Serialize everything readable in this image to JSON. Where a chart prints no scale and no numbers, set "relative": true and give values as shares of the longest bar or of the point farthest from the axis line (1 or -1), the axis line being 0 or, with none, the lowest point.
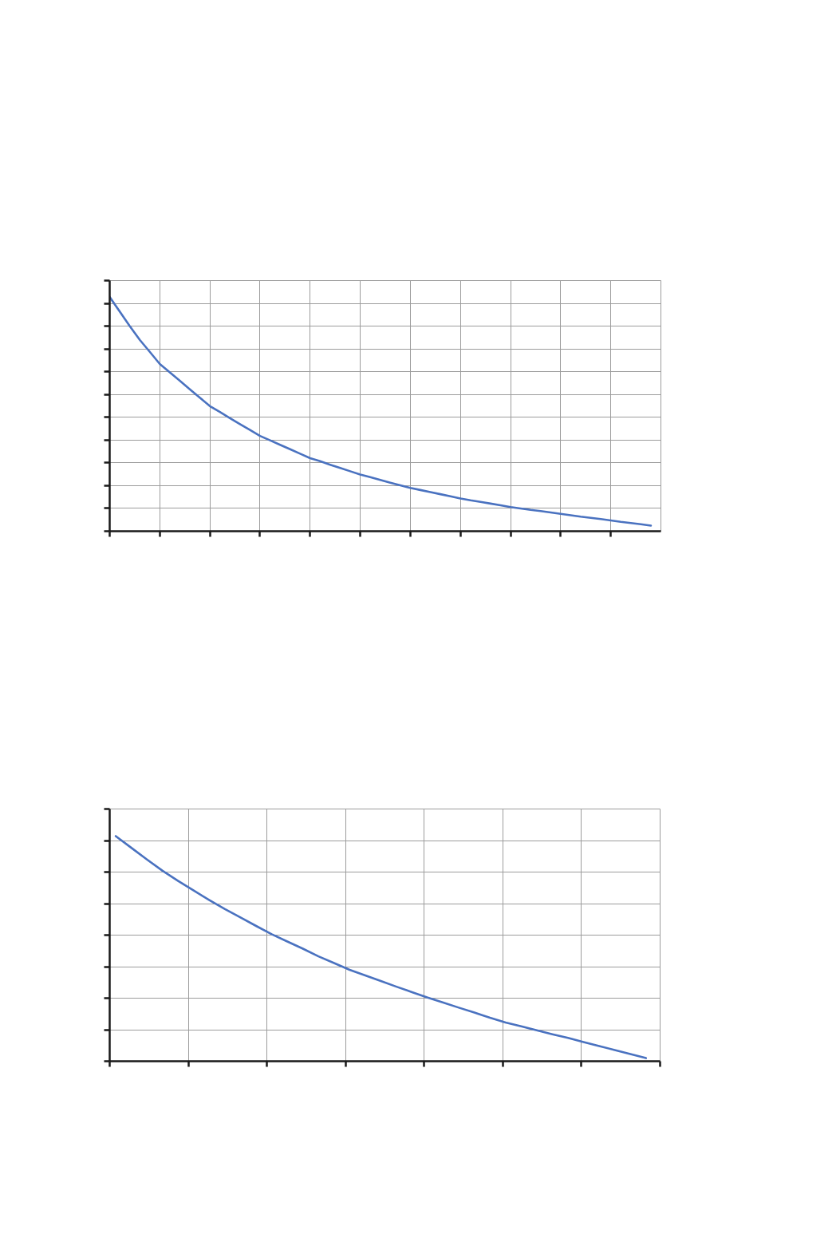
{
  "chart_data": [
    {
      "type": "line",
      "relative": true,
      "grid": true,
      "color": "#4a72c0",
      "categories": [
        null,
        null,
        null,
        null,
        null,
        null,
        null,
        null,
        null,
        null,
        null,
        null,
        null,
        null,
        null,
        null,
        null,
        null,
        null,
        null,
        null,
        null,
        null,
        null,
        null,
        null,
        null,
        null,
        null,
        null,
        null,
        null,
        null,
        null,
        null,
        null,
        null,
        null,
        null,
        null,
        null,
        null,
        null,
        null,
        null,
        null,
        null,
        null,
        null,
        null,
        null,
        null,
        null,
        null,
        null
      ],
      "values": [
        1.0,
        0.938,
        0.876,
        0.817,
        0.766,
        0.714,
        0.678,
        0.642,
        0.606,
        0.57,
        0.534,
        0.509,
        0.483,
        0.457,
        0.432,
        0.407,
        0.388,
        0.369,
        0.35,
        0.331,
        0.312,
        0.299,
        0.284,
        0.27,
        0.256,
        0.242,
        0.231,
        0.219,
        0.207,
        0.196,
        0.185,
        0.176,
        0.167,
        0.158,
        0.149,
        0.14,
        0.132,
        0.125,
        0.118,
        0.111,
        0.103,
        0.097,
        0.091,
        0.086,
        0.08,
        0.074,
        0.068,
        0.062,
        0.057,
        0.052,
        0.046,
        0.04,
        0.035,
        0.03,
        0.024
      ]
    },
    {
      "type": "line",
      "relative": true,
      "grid": true,
      "color": "#4a72c0",
      "categories": [
        null,
        null,
        null,
        null,
        null,
        null,
        null,
        null,
        null,
        null,
        null,
        null,
        null,
        null,
        null,
        null,
        null,
        null,
        null,
        null,
        null,
        null,
        null,
        null,
        null,
        null,
        null,
        null,
        null,
        null,
        null,
        null,
        null,
        null,
        null
      ],
      "values": [
        1.0,
        0.948,
        0.896,
        0.846,
        0.801,
        0.758,
        0.716,
        0.676,
        0.639,
        0.601,
        0.564,
        0.532,
        0.5,
        0.466,
        0.436,
        0.406,
        0.381,
        0.356,
        0.331,
        0.307,
        0.283,
        0.261,
        0.238,
        0.216,
        0.193,
        0.172,
        0.155,
        0.137,
        0.12,
        0.104,
        0.085,
        0.067,
        0.05,
        0.032,
        0.014
      ]
    }
  ]
}
